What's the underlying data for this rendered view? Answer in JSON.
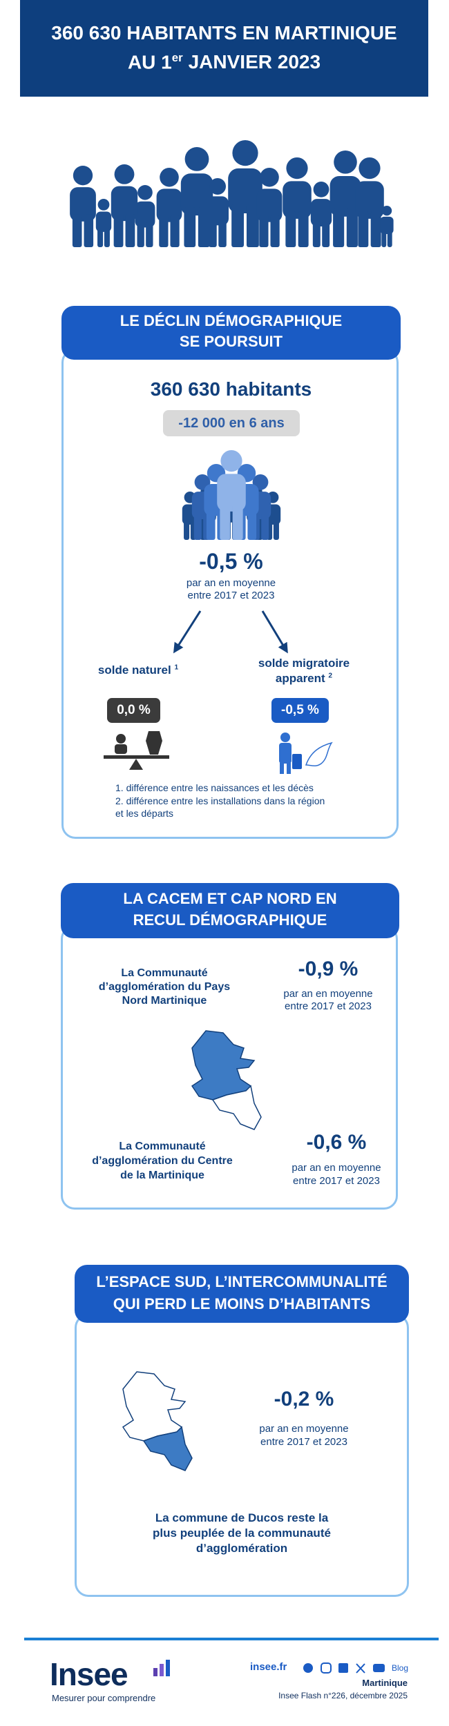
{
  "header": {
    "title_line1": "360 630 HABITANTS EN MARTINIQUE",
    "title_line2_start": "AU 1",
    "title_line2_sup": "er",
    "title_line2_end": "JANVIER 2023"
  },
  "section1": {
    "heading": [
      "LE DÉCLIN DÉMOGRAPHIQUE",
      "SE POURSUIT"
    ],
    "population": "360 630 habitants",
    "change": "-12 000 en 6 ans",
    "rate": "-0,5 %",
    "rate_note": [
      "par an en moyenne",
      "entre 2017 et 2023"
    ],
    "natural": {
      "label": "solde naturel",
      "note_ref": "1",
      "value": "0,0 %"
    },
    "migratory": {
      "label": [
        "solde migratoire",
        "apparent"
      ],
      "note_ref": "2",
      "value": "-0,5 %"
    },
    "footnotes": [
      "1. différence entre les naissances et les décès",
      "2. différence entre les installations dans la région",
      "et les départs"
    ]
  },
  "section2": {
    "heading": [
      "LA CACEM ET CAP NORD EN",
      "RECUL DÉMOGRAPHIQUE"
    ],
    "north": {
      "name": [
        "La Communauté",
        "d’agglomération du Pays",
        "Nord Martinique"
      ],
      "rate": "-0,9 %",
      "rate_note": [
        "par an en moyenne",
        "entre 2017 et 2023"
      ]
    },
    "centre": {
      "name": [
        "La Communauté",
        "d’agglomération du Centre",
        "de la Martinique"
      ],
      "rate": "-0,6 %",
      "rate_note": [
        "par an en moyenne",
        "entre 2017 et 2023"
      ]
    }
  },
  "section3": {
    "heading": [
      "L’ESPACE SUD, L’INTERCOMMUNALITÉ",
      "QUI PERD LE MOINS D’HABITANTS"
    ],
    "rate": "-0,2 %",
    "rate_note": [
      "par an en moyenne",
      "entre 2017 et 2023"
    ],
    "note": [
      "La commune de Ducos reste la",
      "plus peuplée de la communauté",
      "d’agglomération"
    ]
  },
  "footer": {
    "logo": "Insee",
    "tagline": "Mesurer pour comprendre",
    "site": "insee.fr",
    "blog": "Blog",
    "region": "Martinique",
    "publication": "Insee Flash n°226, décembre 2025"
  }
}
